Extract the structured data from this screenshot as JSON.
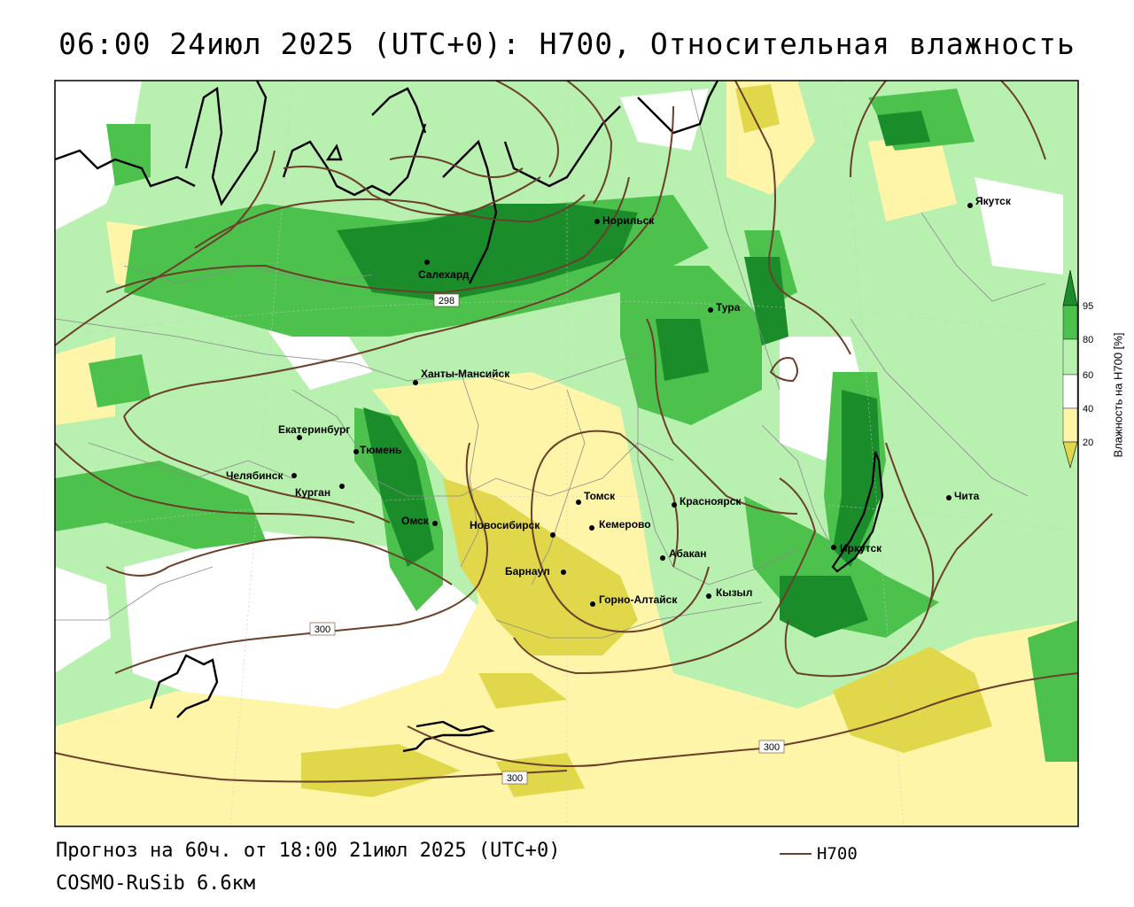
{
  "title": "06:00 24июл 2025 (UTC+0): H700, Относительная влажность",
  "footer": {
    "forecast": "Прогноз на 60ч. от 18:00 21июл 2025 (UTC+0)",
    "model": "COSMO-RuSib 6.6км"
  },
  "legend": {
    "line_label": "H700",
    "line_color": "#6b3f2a"
  },
  "colorbar": {
    "title": "Влажность на H700 [%]",
    "ticks": [
      "95",
      "80",
      "60",
      "40",
      "20"
    ],
    "colors": {
      "c95": "#1a8c2a",
      "c80": "#4cc24c",
      "c60": "#b8f0b0",
      "c40": "#ffffff",
      "c20": "#fff5a8",
      "c0": "#e0d84a"
    }
  },
  "isolines": {
    "labels": [
      "298",
      "300",
      "300",
      "300"
    ]
  },
  "cities": [
    {
      "name": "Якутск"
    },
    {
      "name": "Норильск"
    },
    {
      "name": "Салехард"
    },
    {
      "name": "Тура"
    },
    {
      "name": "Ханты-Мансийск"
    },
    {
      "name": "Екатеринбург"
    },
    {
      "name": "Тюмень"
    },
    {
      "name": "Челябинск"
    },
    {
      "name": "Курган"
    },
    {
      "name": "Омск"
    },
    {
      "name": "Новосибирск"
    },
    {
      "name": "Томск"
    },
    {
      "name": "Кемерово"
    },
    {
      "name": "Красноярск"
    },
    {
      "name": "Абакан"
    },
    {
      "name": "Барнаул"
    },
    {
      "name": "Горно-Алтайск"
    },
    {
      "name": "Кызыл"
    },
    {
      "name": "Иркутск"
    },
    {
      "name": "Чита"
    }
  ]
}
